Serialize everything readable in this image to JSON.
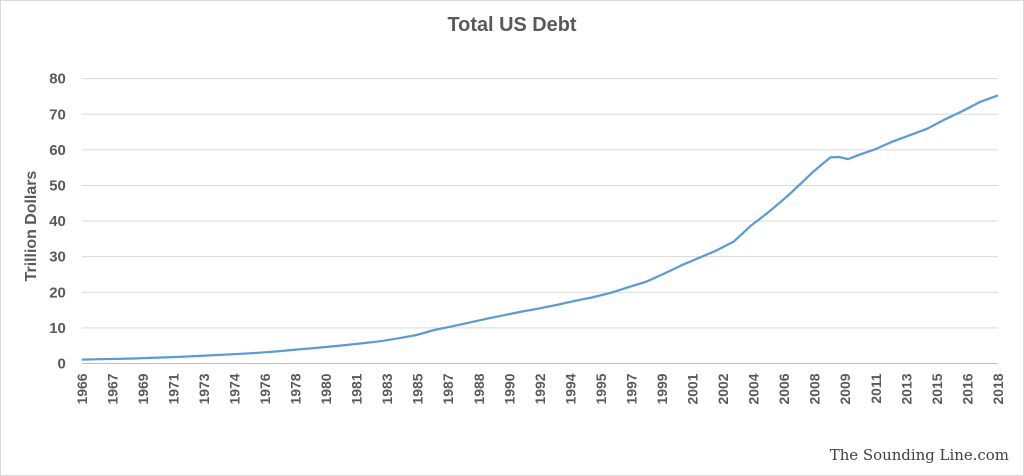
{
  "watermark": "The Sounding Line.com",
  "colors": {
    "line": "#5b9bd5",
    "grid": "#d9d9d9",
    "text": "#595959"
  },
  "chart_data": {
    "type": "line",
    "title": "Total US Debt",
    "xlabel": "",
    "ylabel": "Trillion Dollars",
    "ylim": [
      0,
      80
    ],
    "yticks": [
      "0",
      "10",
      "20",
      "30",
      "40",
      "50",
      "60",
      "70",
      "80"
    ],
    "xticks": [
      "1966",
      "1967",
      "1969",
      "1971",
      "1973",
      "1974",
      "1976",
      "1978",
      "1980",
      "1981",
      "1983",
      "1985",
      "1987",
      "1988",
      "1990",
      "1992",
      "1994",
      "1995",
      "1997",
      "1999",
      "2001",
      "2002",
      "2004",
      "2006",
      "2008",
      "2009",
      "2011",
      "2013",
      "2015",
      "2016",
      "2018"
    ],
    "grid": true,
    "legend": "none",
    "series": [
      {
        "x": [
          1966,
          1967,
          1968,
          1969,
          1970,
          1971,
          1972,
          1973,
          1974,
          1975,
          1976,
          1977,
          1978,
          1979,
          1980,
          1981,
          1982,
          1983,
          1984,
          1985,
          1986,
          1987,
          1988,
          1989,
          1990,
          1991,
          1992,
          1993,
          1994,
          1995,
          1996,
          1997,
          1998,
          1999,
          2000,
          2001,
          2002,
          2003,
          2004,
          2005,
          2006,
          2007,
          2007.5,
          2008,
          2008.5,
          2009,
          2009.5,
          2010,
          2011,
          2012,
          2013,
          2014,
          2015,
          2016,
          2017,
          2018
        ],
        "values": [
          1.1,
          1.2,
          1.3,
          1.4,
          1.6,
          1.75,
          1.95,
          2.2,
          2.45,
          2.7,
          3.0,
          3.35,
          3.8,
          4.25,
          4.7,
          5.2,
          5.7,
          6.3,
          7.1,
          8.0,
          9.4,
          10.4,
          11.5,
          12.6,
          13.6,
          14.6,
          15.5,
          16.5,
          17.6,
          18.6,
          19.8,
          21.4,
          22.9,
          25.1,
          27.5,
          29.6,
          31.7,
          34.2,
          38.8,
          42.6,
          46.8,
          51.4,
          53.8,
          55.9,
          57.9,
          58.0,
          57.4,
          58.4,
          60.1,
          62.3,
          64.1,
          66.0,
          68.6,
          70.9,
          73.5,
          75.3
        ]
      }
    ]
  }
}
